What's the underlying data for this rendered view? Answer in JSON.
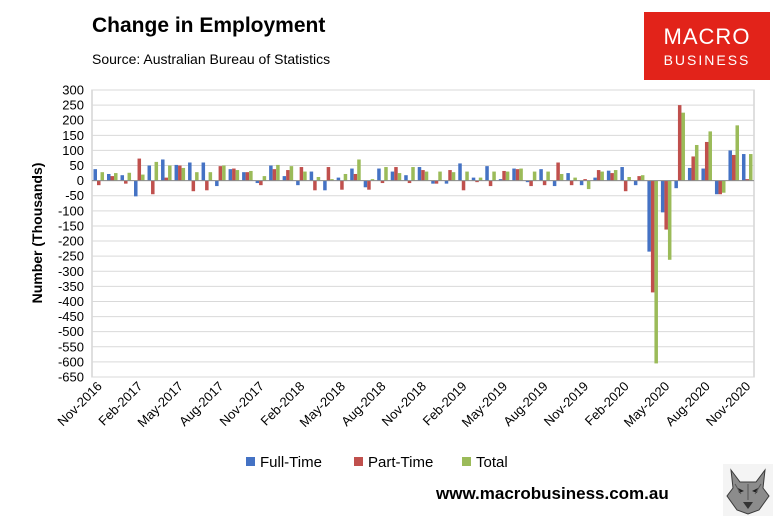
{
  "header": {
    "title": "Change in Employment",
    "subtitle": "Source: Australian Bureau of Statistics"
  },
  "logo": {
    "line1": "MACRO",
    "line2": "BUSINESS"
  },
  "footer": {
    "url": "www.macrobusiness.com.au"
  },
  "icons": {
    "logo": "macrobusiness-logo",
    "wolf": "wolf-head-icon"
  },
  "colors": {
    "full_time": "#4472c4",
    "part_time": "#c0504d",
    "total": "#9bbb59",
    "brand": "#e2231a"
  },
  "chart_data": {
    "type": "bar",
    "title": "Change in Employment",
    "xlabel": "",
    "ylabel": "Number (Thousands)",
    "ylim": [
      -650,
      300
    ],
    "yticks": [
      300,
      250,
      200,
      150,
      100,
      50,
      0,
      -50,
      -100,
      -150,
      -200,
      -250,
      -300,
      -350,
      -400,
      -450,
      -500,
      -550,
      -600,
      -650
    ],
    "grid": true,
    "legend": "bottom",
    "x_tick_labels": [
      "Nov-2016",
      "Feb-2017",
      "May-2017",
      "Aug-2017",
      "Nov-2017",
      "Feb-2018",
      "May-2018",
      "Aug-2018",
      "Nov-2018",
      "Feb-2019",
      "May-2019",
      "Aug-2019",
      "Nov-2019",
      "Feb-2020",
      "May-2020",
      "Aug-2020",
      "Nov-2020"
    ],
    "categories": [
      "Nov-2016",
      "Dec-2016",
      "Jan-2017",
      "Feb-2017",
      "Mar-2017",
      "Apr-2017",
      "May-2017",
      "Jun-2017",
      "Jul-2017",
      "Aug-2017",
      "Sep-2017",
      "Oct-2017",
      "Nov-2017",
      "Dec-2017",
      "Jan-2018",
      "Feb-2018",
      "Mar-2018",
      "Apr-2018",
      "May-2018",
      "Jun-2018",
      "Jul-2018",
      "Aug-2018",
      "Sep-2018",
      "Oct-2018",
      "Nov-2018",
      "Dec-2018",
      "Jan-2019",
      "Feb-2019",
      "Mar-2019",
      "Apr-2019",
      "May-2019",
      "Jun-2019",
      "Jul-2019",
      "Aug-2019",
      "Sep-2019",
      "Oct-2019",
      "Nov-2019",
      "Dec-2019",
      "Jan-2020",
      "Feb-2020",
      "Mar-2020",
      "Apr-2020",
      "May-2020",
      "Jun-2020",
      "Jul-2020",
      "Aug-2020",
      "Sep-2020",
      "Oct-2020",
      "Nov-2020"
    ],
    "series": [
      {
        "name": "Full-Time",
        "values": [
          38,
          22,
          18,
          -52,
          50,
          70,
          52,
          60,
          60,
          -18,
          38,
          28,
          -8,
          50,
          15,
          -15,
          30,
          -32,
          10,
          40,
          -22,
          40,
          30,
          18,
          45,
          -10,
          -10,
          57,
          10,
          48,
          5,
          40,
          -5,
          38,
          -18,
          25,
          -15,
          10,
          33,
          45,
          -15,
          -235,
          -105,
          -25,
          42,
          40,
          -45,
          100,
          88
        ]
      },
      {
        "name": "Part-Time",
        "values": [
          -15,
          15,
          -10,
          73,
          -45,
          10,
          50,
          -35,
          -32,
          48,
          40,
          28,
          -15,
          38,
          35,
          45,
          -32,
          45,
          -30,
          22,
          -30,
          -8,
          45,
          -8,
          35,
          -10,
          35,
          -32,
          -5,
          -18,
          32,
          38,
          -18,
          -15,
          60,
          -15,
          5,
          35,
          25,
          -35,
          15,
          -370,
          -162,
          250,
          80,
          128,
          -45,
          85,
          5
        ]
      },
      {
        "name": "Total",
        "values": [
          28,
          25,
          26,
          20,
          62,
          50,
          42,
          28,
          28,
          50,
          35,
          32,
          15,
          52,
          48,
          30,
          12,
          5,
          22,
          70,
          5,
          45,
          25,
          45,
          30,
          30,
          28,
          30,
          10,
          30,
          30,
          40,
          30,
          30,
          22,
          10,
          -28,
          30,
          35,
          12,
          18,
          -605,
          -262,
          225,
          118,
          163,
          -40,
          183,
          88
        ]
      }
    ]
  }
}
